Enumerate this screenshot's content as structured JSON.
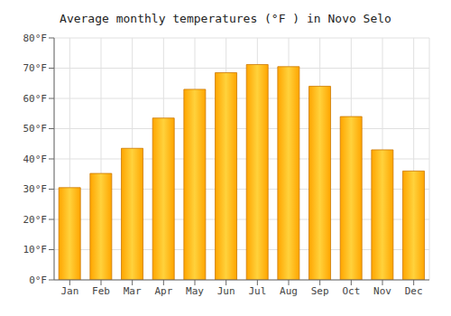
{
  "chart_data": {
    "type": "bar",
    "title": "Average monthly temperatures (°F ) in Novo Selo",
    "categories": [
      "Jan",
      "Feb",
      "Mar",
      "Apr",
      "May",
      "Jun",
      "Jul",
      "Aug",
      "Sep",
      "Oct",
      "Nov",
      "Dec"
    ],
    "values": [
      30.5,
      35.2,
      43.5,
      53.5,
      63.0,
      68.5,
      71.2,
      70.5,
      64.0,
      54.0,
      43.0,
      36.0
    ],
    "color": "#FFA500",
    "ylim": [
      0,
      80
    ],
    "yticks": [
      {
        "value": 0,
        "label": "0°F"
      },
      {
        "value": 10,
        "label": "10°F"
      },
      {
        "value": 20,
        "label": "20°F"
      },
      {
        "value": 30,
        "label": "30°F"
      },
      {
        "value": 40,
        "label": "40°F"
      },
      {
        "value": 50,
        "label": "50°F"
      },
      {
        "value": 60,
        "label": "60°F"
      },
      {
        "value": 70,
        "label": "70°F"
      },
      {
        "value": 80,
        "label": "80°F"
      }
    ],
    "grid": true
  }
}
